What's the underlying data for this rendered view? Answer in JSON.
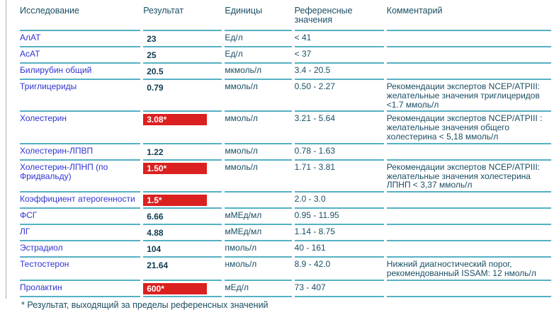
{
  "colors": {
    "flag_background": "#db2020",
    "flag_text": "#ffffff",
    "border_teal": "#55b1c4",
    "test_name_blue": "#3134d2",
    "text_teal": "#1a4e63",
    "left_rule_gray": "#ababab"
  },
  "table": {
    "columns": [
      "Исследование",
      "Результат",
      "Единицы",
      "Референсные значения",
      "Комментарий"
    ],
    "rows": [
      {
        "name": "АлАТ",
        "result": "23",
        "flag": false,
        "units": "Ед/л",
        "reference": "< 41",
        "comment": ""
      },
      {
        "name": "АсАТ",
        "result": "25",
        "flag": false,
        "units": "Ед/л",
        "reference": "< 37",
        "comment": ""
      },
      {
        "name": "Билирубин общий",
        "result": "20.5",
        "flag": false,
        "units": "мкмоль/л",
        "reference": "3.4 - 20.5",
        "comment": ""
      },
      {
        "name": "Триглицериды",
        "result": "0.79",
        "flag": false,
        "units": "ммоль/л",
        "reference": "0.50 - 2.27",
        "comment": "Рекомендации экспертов NCEP/ATPIII: желательные значения триглицеридов <1.7 ммоль/л"
      },
      {
        "name": "Холестерин",
        "result": "3.08*",
        "flag": true,
        "units": "ммоль/л",
        "reference": "3.21 - 5.64",
        "comment": "Рекомендации экспертов NCEP/ATPIII : желательные значения общего холестерина < 5,18 ммоль/л"
      },
      {
        "name": "Холестерин-ЛПВП",
        "result": "1.22",
        "flag": false,
        "units": "ммоль/л",
        "reference": "0.78 - 1.63",
        "comment": ""
      },
      {
        "name": "Холестерин-ЛПНП (по Фридвальду)",
        "result": "1.50*",
        "flag": true,
        "units": "ммоль/л",
        "reference": "1.71 - 3.81",
        "comment": "Рекомендации экспертов NCEP/ATPIII: желательные значения холестерина ЛПНП < 3,37 ммоль/л"
      },
      {
        "name": "Коэффициент атерогенности",
        "result": "1.5*",
        "flag": true,
        "units": "",
        "reference": "2.0 - 3.0",
        "comment": ""
      },
      {
        "name": "ФСГ",
        "result": "6.66",
        "flag": false,
        "units": "мМЕд/мл",
        "reference": "0.95 - 11.95",
        "comment": ""
      },
      {
        "name": "ЛГ",
        "result": "4.88",
        "flag": false,
        "units": "мМЕд/мл",
        "reference": "1.14 - 8.75",
        "comment": ""
      },
      {
        "name": "Эстрадиол",
        "result": "104",
        "flag": false,
        "units": "пмоль/л",
        "reference": "40 - 161",
        "comment": ""
      },
      {
        "name": "Тестостерон",
        "result": "21.64",
        "flag": false,
        "units": "нмоль/л",
        "reference": "8.9 - 42.0",
        "comment": "Нижний диагностический порог, рекомендованный ISSAM: 12 нмоль/л"
      },
      {
        "name": "Пролактин",
        "result": "600*",
        "flag": true,
        "units": "мЕд/л",
        "reference": "73 - 407",
        "comment": ""
      }
    ],
    "footnote": "* Результат, выходящий за пределы референсных значений"
  }
}
